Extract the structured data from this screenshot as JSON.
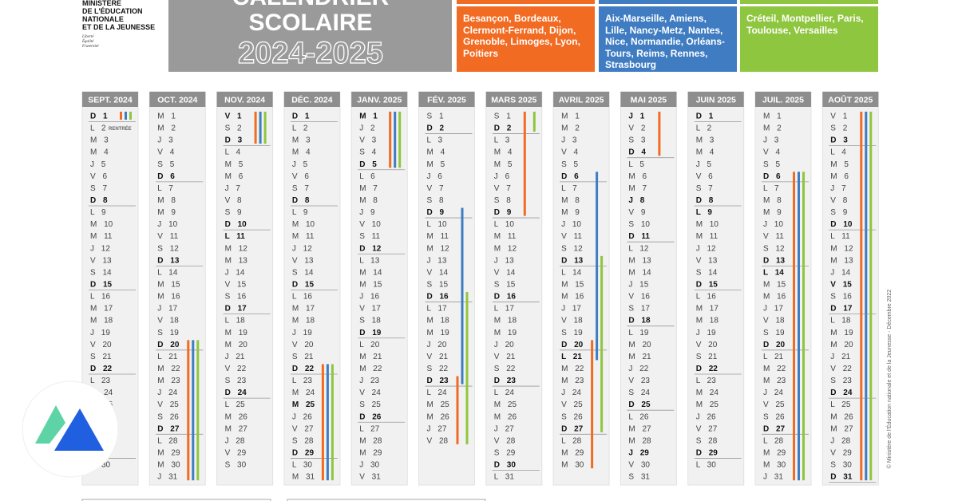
{
  "header": {
    "ministry": [
      "MINISTÈRE",
      "DE L'ÉDUCATION",
      "NATIONALE",
      "ET DE LA JEUNESSE"
    ],
    "motto": [
      "Liberté",
      "Égalité",
      "Fraternité"
    ],
    "title": [
      "CALENDRIER",
      "SCOLAIRE"
    ],
    "year": "2024-2025"
  },
  "zones": [
    {
      "color": "#f26b22",
      "cities": "Besançon, Bordeaux, Clermont-Ferrand, Dijon, Grenoble, Limoges, Lyon, Poitiers"
    },
    {
      "color": "#3f7cc2",
      "cities": "Aix-Marseille, Amiens, Lille, Nancy-Metz, Nantes, Nice, Normandie, Orléans-Tours, Reims, Rennes, Strasbourg"
    },
    {
      "color": "#8fc63f",
      "cities": "Créteil, Montpellier, Paris, Toulouse, Versailles"
    }
  ],
  "months": [
    {
      "label": "SEPT. 2024",
      "note": "RENTRÉE",
      "holidays": [],
      "breaks": [
        {
          "zone": 0,
          "from": 1,
          "to": 1
        },
        {
          "zone": 1,
          "from": 1,
          "to": 1
        },
        {
          "zone": 2,
          "from": 1,
          "to": 1
        }
      ],
      "days": [
        "D 1",
        "L 2",
        "M 3",
        "M 4",
        "J 5",
        "V 6",
        "S 7",
        "D 8",
        "L 9",
        "M 10",
        "M 11",
        "J 12",
        "V 13",
        "S 14",
        "D 15",
        "L 16",
        "M 17",
        "M 18",
        "J 19",
        "V 20",
        "S 21",
        "D 22",
        "L 23",
        "M 24",
        "M 25",
        "J 26",
        "V 27",
        "S 28",
        "D 29",
        "L 30"
      ]
    },
    {
      "label": "OCT. 2024",
      "holidays": [],
      "breaks": [
        {
          "zone": 0,
          "from": 20,
          "to": 31
        },
        {
          "zone": 1,
          "from": 20,
          "to": 31
        },
        {
          "zone": 2,
          "from": 20,
          "to": 31
        }
      ],
      "days": [
        "M 1",
        "M 2",
        "J 3",
        "V 4",
        "S 5",
        "D 6",
        "L 7",
        "M 8",
        "M 9",
        "J 10",
        "V 11",
        "S 12",
        "D 13",
        "L 14",
        "M 15",
        "M 16",
        "J 17",
        "V 18",
        "S 19",
        "D 20",
        "L 21",
        "M 22",
        "M 23",
        "J 24",
        "V 25",
        "S 26",
        "D 27",
        "L 28",
        "M 29",
        "M 30",
        "J 31"
      ]
    },
    {
      "label": "NOV. 2024",
      "holidays": [
        1,
        11
      ],
      "breaks": [
        {
          "zone": 0,
          "from": 1,
          "to": 3
        },
        {
          "zone": 1,
          "from": 1,
          "to": 3
        },
        {
          "zone": 2,
          "from": 1,
          "to": 3
        }
      ],
      "days": [
        "V 1",
        "S 2",
        "D 3",
        "L 4",
        "M 5",
        "M 6",
        "J 7",
        "V 8",
        "S 9",
        "D 10",
        "L 11",
        "M 12",
        "M 13",
        "J 14",
        "V 15",
        "S 16",
        "D 17",
        "L 18",
        "M 19",
        "M 20",
        "J 21",
        "V 22",
        "S 23",
        "D 24",
        "L 25",
        "M 26",
        "M 27",
        "J 28",
        "V 29",
        "S 30"
      ]
    },
    {
      "label": "DÉC. 2024",
      "holidays": [
        25
      ],
      "breaks": [
        {
          "zone": 0,
          "from": 22,
          "to": 31
        },
        {
          "zone": 1,
          "from": 22,
          "to": 31
        },
        {
          "zone": 2,
          "from": 22,
          "to": 31
        }
      ],
      "days": [
        "D 1",
        "L 2",
        "M 3",
        "M 4",
        "J 5",
        "V 6",
        "S 7",
        "D 8",
        "L 9",
        "M 10",
        "M 11",
        "J 12",
        "V 13",
        "S 14",
        "D 15",
        "L 16",
        "M 17",
        "M 18",
        "J 19",
        "V 20",
        "S 21",
        "D 22",
        "L 23",
        "M 24",
        "M 25",
        "J 26",
        "V 27",
        "S 28",
        "D 29",
        "L 30",
        "M 31"
      ]
    },
    {
      "label": "JANV. 2025",
      "holidays": [
        1
      ],
      "breaks": [
        {
          "zone": 0,
          "from": 1,
          "to": 5
        },
        {
          "zone": 1,
          "from": 1,
          "to": 5
        },
        {
          "zone": 2,
          "from": 1,
          "to": 5
        }
      ],
      "days": [
        "M 1",
        "J 2",
        "V 3",
        "S 4",
        "D 5",
        "L 6",
        "M 7",
        "M 8",
        "J 9",
        "V 10",
        "S 11",
        "D 12",
        "L 13",
        "M 14",
        "M 15",
        "J 16",
        "V 17",
        "S 18",
        "D 19",
        "L 20",
        "M 21",
        "M 22",
        "J 23",
        "V 24",
        "S 25",
        "D 26",
        "L 27",
        "M 28",
        "M 29",
        "J 30",
        "V 31"
      ]
    },
    {
      "label": "FÉV. 2025",
      "holidays": [],
      "breaks": [
        {
          "zone": 0,
          "from": 23,
          "to": 28
        },
        {
          "zone": 1,
          "from": 9,
          "to": 23
        },
        {
          "zone": 2,
          "from": 16,
          "to": 28
        }
      ],
      "days": [
        "S 1",
        "D 2",
        "L 3",
        "M 4",
        "M 5",
        "J 6",
        "V 7",
        "S 8",
        "D 9",
        "L 10",
        "M 11",
        "M 12",
        "J 13",
        "V 14",
        "S 15",
        "D 16",
        "L 17",
        "M 18",
        "M 19",
        "J 20",
        "V 21",
        "S 22",
        "D 23",
        "L 24",
        "M 25",
        "M 26",
        "J 27",
        "V 28"
      ]
    },
    {
      "label": "MARS 2025",
      "holidays": [],
      "breaks": [
        {
          "zone": 0,
          "from": 1,
          "to": 9
        },
        {
          "zone": 2,
          "from": 1,
          "to": 2
        }
      ],
      "days": [
        "S 1",
        "D 2",
        "L 3",
        "M 4",
        "M 5",
        "J 6",
        "V 7",
        "S 8",
        "D 9",
        "L 10",
        "M 11",
        "M 12",
        "J 13",
        "V 14",
        "S 15",
        "D 16",
        "L 17",
        "M 18",
        "M 19",
        "J 20",
        "V 21",
        "S 22",
        "D 23",
        "L 24",
        "M 25",
        "M 26",
        "J 27",
        "V 28",
        "S 29",
        "D 30",
        "L 31"
      ]
    },
    {
      "label": "AVRIL 2025",
      "holidays": [
        21
      ],
      "breaks": [
        {
          "zone": 0,
          "from": 20,
          "to": 30
        },
        {
          "zone": 1,
          "from": 6,
          "to": 21
        },
        {
          "zone": 2,
          "from": 13,
          "to": 27
        }
      ],
      "days": [
        "M 1",
        "M 2",
        "J 3",
        "V 4",
        "S 5",
        "D 6",
        "L 7",
        "M 8",
        "M 9",
        "J 10",
        "V 11",
        "S 12",
        "D 13",
        "L 14",
        "M 15",
        "M 16",
        "J 17",
        "V 18",
        "S 19",
        "D 20",
        "L 21",
        "M 22",
        "M 23",
        "J 24",
        "V 25",
        "S 26",
        "D 27",
        "L 28",
        "M 29",
        "M 30"
      ]
    },
    {
      "label": "MAI 2025",
      "holidays": [
        1,
        8,
        29
      ],
      "breaks": [
        {
          "zone": 0,
          "from": 1,
          "to": 4
        }
      ],
      "days": [
        "J 1",
        "V 2",
        "S 3",
        "D 4",
        "L 5",
        "M 6",
        "M 7",
        "J 8",
        "V 9",
        "S 10",
        "D 11",
        "L 12",
        "M 13",
        "M 14",
        "J 15",
        "V 16",
        "S 17",
        "D 18",
        "L 19",
        "M 20",
        "M 21",
        "J 22",
        "V 23",
        "S 24",
        "D 25",
        "L 26",
        "M 27",
        "M 28",
        "J 29",
        "V 30",
        "S 31"
      ]
    },
    {
      "label": "JUIN 2025",
      "holidays": [
        9
      ],
      "breaks": [],
      "days": [
        "D 1",
        "L 2",
        "M 3",
        "M 4",
        "J 5",
        "V 6",
        "S 7",
        "D 8",
        "L 9",
        "M 10",
        "M 11",
        "J 12",
        "V 13",
        "S 14",
        "D 15",
        "L 16",
        "M 17",
        "M 18",
        "J 19",
        "V 20",
        "S 21",
        "D 22",
        "L 23",
        "M 24",
        "M 25",
        "J 26",
        "V 27",
        "S 28",
        "D 29",
        "L 30"
      ]
    },
    {
      "label": "JUIL. 2025",
      "holidays": [
        14
      ],
      "breaks": [
        {
          "zone": 0,
          "from": 6,
          "to": 31
        },
        {
          "zone": 1,
          "from": 6,
          "to": 31
        },
        {
          "zone": 2,
          "from": 6,
          "to": 31
        }
      ],
      "days": [
        "M 1",
        "M 2",
        "J 3",
        "V 4",
        "S 5",
        "D 6",
        "L 7",
        "M 8",
        "M 9",
        "J 10",
        "V 11",
        "S 12",
        "D 13",
        "L 14",
        "M 15",
        "M 16",
        "J 17",
        "V 18",
        "S 19",
        "D 20",
        "L 21",
        "M 22",
        "M 23",
        "J 24",
        "V 25",
        "S 26",
        "D 27",
        "L 28",
        "M 29",
        "M 30",
        "J 31"
      ]
    },
    {
      "label": "AOÛT 2025",
      "holidays": [
        15
      ],
      "breaks": [
        {
          "zone": 0,
          "from": 1,
          "to": 31
        },
        {
          "zone": 1,
          "from": 1,
          "to": 31
        },
        {
          "zone": 2,
          "from": 1,
          "to": 31
        }
      ],
      "days": [
        "V 1",
        "S 2",
        "D 3",
        "L 4",
        "M 5",
        "M 6",
        "J 7",
        "V 8",
        "S 9",
        "D 10",
        "L 11",
        "M 12",
        "M 13",
        "J 14",
        "V 15",
        "S 16",
        "D 17",
        "L 18",
        "M 19",
        "M 20",
        "J 21",
        "V 22",
        "S 23",
        "D 24",
        "L 25",
        "M 26",
        "M 27",
        "J 28",
        "V 29",
        "S 30",
        "D 31"
      ]
    }
  ],
  "copyright": "© Ministère de l'Éducation nationale et de la Jeunesse - Décembre 2022"
}
